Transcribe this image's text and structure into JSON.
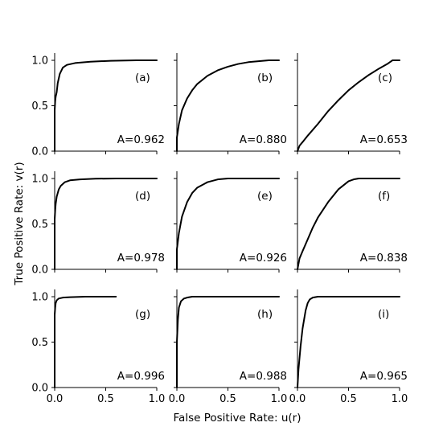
{
  "chart_data": {
    "type": "line",
    "layout": "3x3 grid of small-multiple ROC panels, shared axes",
    "xlabel": "False Positive Rate: u(r)",
    "ylabel": "True Positive Rate: v(r)",
    "xlim": [
      0,
      1
    ],
    "ylim": [
      0,
      1.08
    ],
    "xticks": [
      "0.0",
      "0.5",
      "1.0"
    ],
    "yticks": [
      "0.0",
      "0.5",
      "1.0"
    ],
    "grid": false,
    "legend": "none",
    "line_color": "#000000",
    "panels": [
      {
        "tag": "(a)",
        "auc_label": "A=0.962",
        "x": [
          0,
          0,
          0.005,
          0.01,
          0.02,
          0.03,
          0.05,
          0.08,
          0.12,
          0.2,
          0.35,
          0.55,
          0.8,
          1.0
        ],
        "y": [
          0,
          0.45,
          0.55,
          0.6,
          0.65,
          0.75,
          0.85,
          0.92,
          0.95,
          0.97,
          0.985,
          0.995,
          1.0,
          1.0
        ]
      },
      {
        "tag": "(b)",
        "auc_label": "A=0.880",
        "x": [
          0,
          0,
          0.02,
          0.05,
          0.1,
          0.15,
          0.2,
          0.3,
          0.4,
          0.5,
          0.6,
          0.7,
          0.8,
          0.9,
          1.0
        ],
        "y": [
          0,
          0.15,
          0.3,
          0.45,
          0.58,
          0.67,
          0.74,
          0.83,
          0.89,
          0.93,
          0.96,
          0.98,
          0.99,
          1.0,
          1.0
        ]
      },
      {
        "tag": "(c)",
        "auc_label": "A=0.653",
        "x": [
          0,
          0.02,
          0.05,
          0.1,
          0.2,
          0.3,
          0.4,
          0.5,
          0.6,
          0.7,
          0.8,
          0.88,
          0.93,
          1.0
        ],
        "y": [
          0,
          0.06,
          0.1,
          0.17,
          0.3,
          0.44,
          0.56,
          0.67,
          0.76,
          0.84,
          0.91,
          0.96,
          1.0,
          1.0
        ]
      },
      {
        "tag": "(d)",
        "auc_label": "A=0.978",
        "x": [
          0,
          0,
          0.005,
          0.01,
          0.02,
          0.04,
          0.06,
          0.1,
          0.15,
          0.25,
          0.4,
          0.6,
          1.0
        ],
        "y": [
          0,
          0.55,
          0.65,
          0.72,
          0.8,
          0.88,
          0.92,
          0.96,
          0.98,
          0.99,
          0.998,
          1.0,
          1.0
        ]
      },
      {
        "tag": "(e)",
        "auc_label": "A=0.926",
        "x": [
          0,
          0,
          0.02,
          0.05,
          0.1,
          0.15,
          0.2,
          0.3,
          0.4,
          0.5,
          0.65,
          1.0
        ],
        "y": [
          0,
          0.22,
          0.4,
          0.58,
          0.74,
          0.84,
          0.9,
          0.96,
          0.99,
          1.0,
          1.0,
          1.0
        ]
      },
      {
        "tag": "(f)",
        "auc_label": "A=0.838",
        "x": [
          0,
          0.02,
          0.05,
          0.1,
          0.15,
          0.2,
          0.3,
          0.4,
          0.5,
          0.55,
          0.6,
          1.0
        ],
        "y": [
          0,
          0.12,
          0.2,
          0.33,
          0.46,
          0.57,
          0.74,
          0.88,
          0.97,
          0.99,
          1.0,
          1.0
        ]
      },
      {
        "tag": "(g)",
        "auc_label": "A=0.996",
        "x": [
          0,
          0,
          0.005,
          0.01,
          0.02,
          0.04,
          0.08,
          0.15,
          0.3,
          0.6
        ],
        "y": [
          0,
          0.8,
          0.88,
          0.93,
          0.96,
          0.98,
          0.99,
          0.995,
          1.0,
          1.0
        ]
      },
      {
        "tag": "(h)",
        "auc_label": "A=0.988",
        "x": [
          0,
          0,
          0.01,
          0.02,
          0.04,
          0.07,
          0.1,
          0.15,
          0.25,
          1.0
        ],
        "y": [
          0,
          0.5,
          0.75,
          0.88,
          0.95,
          0.98,
          0.99,
          1.0,
          1.0,
          1.0
        ]
      },
      {
        "tag": "(i)",
        "auc_label": "A=0.965",
        "x": [
          0,
          0.01,
          0.03,
          0.05,
          0.08,
          0.1,
          0.12,
          0.15,
          0.2,
          0.3,
          1.0
        ],
        "y": [
          0,
          0.2,
          0.45,
          0.65,
          0.85,
          0.93,
          0.97,
          0.99,
          1.0,
          1.0,
          1.0
        ]
      }
    ]
  }
}
